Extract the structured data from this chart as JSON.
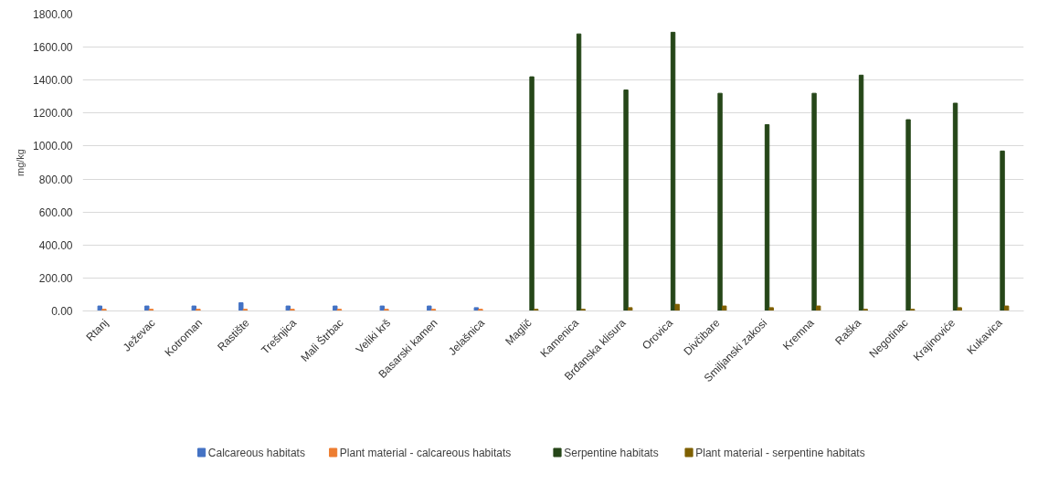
{
  "chart_data": {
    "type": "bar",
    "ylabel": "mg/kg",
    "categories": [
      "Rtanj",
      "Ježevac",
      "Kotroman",
      "Rastište",
      "Trešnjica",
      "Mali Štrbac",
      "Veliki krš",
      "Basarski kamen",
      "Jelašnica",
      "Maglič",
      "Kamenica",
      "Brđanska klisura",
      "Orovica",
      "Divčibare",
      "Smiljanski zakosi",
      "Kremna",
      "Raška",
      "Negotinac",
      "Krajinoviće",
      "Kukavica"
    ],
    "series": [
      {
        "name": "Calcareous habitats",
        "color": "#4472c4",
        "values": [
          30,
          30,
          30,
          50,
          30,
          30,
          30,
          30,
          20,
          null,
          null,
          null,
          null,
          null,
          null,
          null,
          null,
          null,
          null,
          null
        ]
      },
      {
        "name": "Plant material - calcareous habitats",
        "color": "#ed7d31",
        "values": [
          10,
          10,
          10,
          10,
          10,
          10,
          10,
          10,
          10,
          null,
          null,
          null,
          null,
          null,
          null,
          null,
          null,
          null,
          null,
          null
        ]
      },
      {
        "name": "Serpentine habitats",
        "color": "#264719",
        "values": [
          null,
          null,
          null,
          null,
          null,
          null,
          null,
          null,
          null,
          1420,
          1680,
          1340,
          1690,
          1320,
          1130,
          1320,
          1430,
          1160,
          1260,
          970
        ]
      },
      {
        "name": "Plant material - serpentine habitats",
        "color": "#7f6000",
        "values": [
          null,
          null,
          null,
          null,
          null,
          null,
          null,
          null,
          null,
          10,
          10,
          20,
          40,
          30,
          20,
          30,
          10,
          10,
          20,
          30
        ]
      }
    ],
    "ylim": [
      0,
      1800
    ],
    "yticks": [
      {
        "value": 0,
        "label": "0.00"
      },
      {
        "value": 200,
        "label": "200.00"
      },
      {
        "value": 400,
        "label": "400.00"
      },
      {
        "value": 600,
        "label": "600.00"
      },
      {
        "value": 800,
        "label": "800.00"
      },
      {
        "value": 1000,
        "label": "1000.00"
      },
      {
        "value": 1200,
        "label": "1200.00"
      },
      {
        "value": 1400,
        "label": "1400.00"
      },
      {
        "value": 1600,
        "label": "1600.00"
      },
      {
        "value": 1800,
        "label": "1800.00"
      }
    ],
    "grid": "y",
    "legend": "bottom"
  }
}
